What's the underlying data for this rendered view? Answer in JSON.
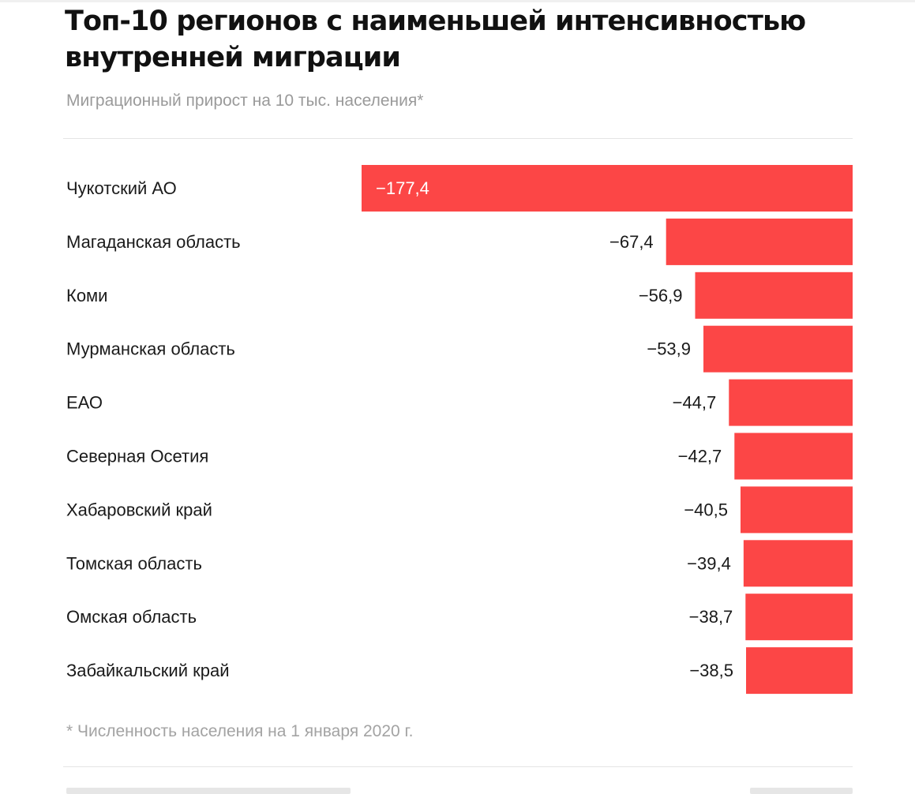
{
  "header": {
    "title": "Топ-10 регионов с наименьшей интенсивностью внутренней миграции",
    "subtitle": "Миграционный прирост на 10 тыс. населения*"
  },
  "footnote": "* Численность населения на 1 января 2020 г.",
  "colors": {
    "bar": "#fc4646",
    "label_inside": "#ffffff",
    "label_outside": "#1a1a1a",
    "category_text": "#1a1a1a"
  },
  "chart_data": {
    "type": "bar",
    "orientation": "horizontal",
    "title": "Топ-10 регионов с наименьшей интенсивностью внутренней миграции",
    "subtitle": "Миграционный прирост на 10 тыс. населения*",
    "categories": [
      "Чукотский АО",
      "Магаданская область",
      "Коми",
      "Мурманская область",
      "ЕАО",
      "Северная Осетия",
      "Хабаровский край",
      "Томская область",
      "Омская область",
      "Забайкальский край"
    ],
    "values": [
      -177.4,
      -67.4,
      -56.9,
      -53.9,
      -44.7,
      -42.7,
      -40.5,
      -39.4,
      -38.7,
      -38.5
    ],
    "labels": [
      "−177,4",
      "−67,4",
      "−56,9",
      "−53,9",
      "−44,7",
      "−42,7",
      "−40,5",
      "−39,4",
      "−38,7",
      "−38,5"
    ],
    "xlim": [
      -177.4,
      0
    ],
    "grid": false,
    "legend": "none"
  }
}
